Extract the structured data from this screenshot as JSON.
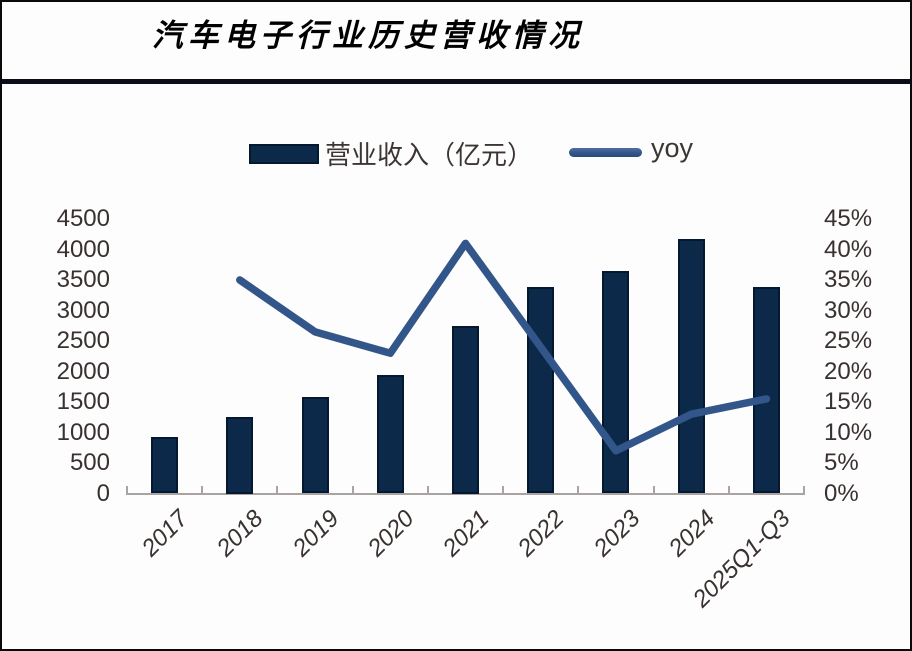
{
  "title": "汽车电子行业历史营收情况",
  "legend": {
    "bar_label": "营业收入（亿元）",
    "line_label": "yoy"
  },
  "chart_data": {
    "type": "bar",
    "subtype": "bar+line combo",
    "title": "汽车电子行业历史营收情况",
    "categories": [
      "2017",
      "2018",
      "2019",
      "2020",
      "2021",
      "2022",
      "2023",
      "2024",
      "2025Q1-Q3"
    ],
    "series": [
      {
        "name": "营业收入（亿元）",
        "type": "bar",
        "axis": "left",
        "values": [
          930,
          1250,
          1580,
          1940,
          2750,
          3390,
          3650,
          4180,
          3390
        ]
      },
      {
        "name": "yoy",
        "type": "line",
        "axis": "right",
        "values_percent": [
          null,
          35,
          26.5,
          23,
          41,
          24,
          7,
          13,
          15.5
        ]
      }
    ],
    "left_axis": {
      "min": 0,
      "max": 4500,
      "step": 500,
      "tick_labels_top_to_bottom": [
        "4500",
        "4000",
        "3500",
        "3000",
        "2500",
        "2000",
        "1500",
        "1000",
        "500",
        "0"
      ]
    },
    "right_axis": {
      "min_percent": 0,
      "max_percent": 45,
      "step_percent": 5,
      "tick_labels_top_to_bottom": [
        "45%",
        "40%",
        "35%",
        "30%",
        "25%",
        "20%",
        "15%",
        "10%",
        "5%",
        "0%"
      ]
    },
    "grid": "off",
    "legend_position": "top-center"
  },
  "colors": {
    "bar_fill": "#0d2949",
    "bar_border": "#04182f",
    "line_stroke": "#33568a",
    "axis_line": "#a9a4a2",
    "axis_text": "#39312f",
    "title_text": "#000000",
    "rule": "#0c0d1b",
    "background": "#fdfdfd"
  }
}
